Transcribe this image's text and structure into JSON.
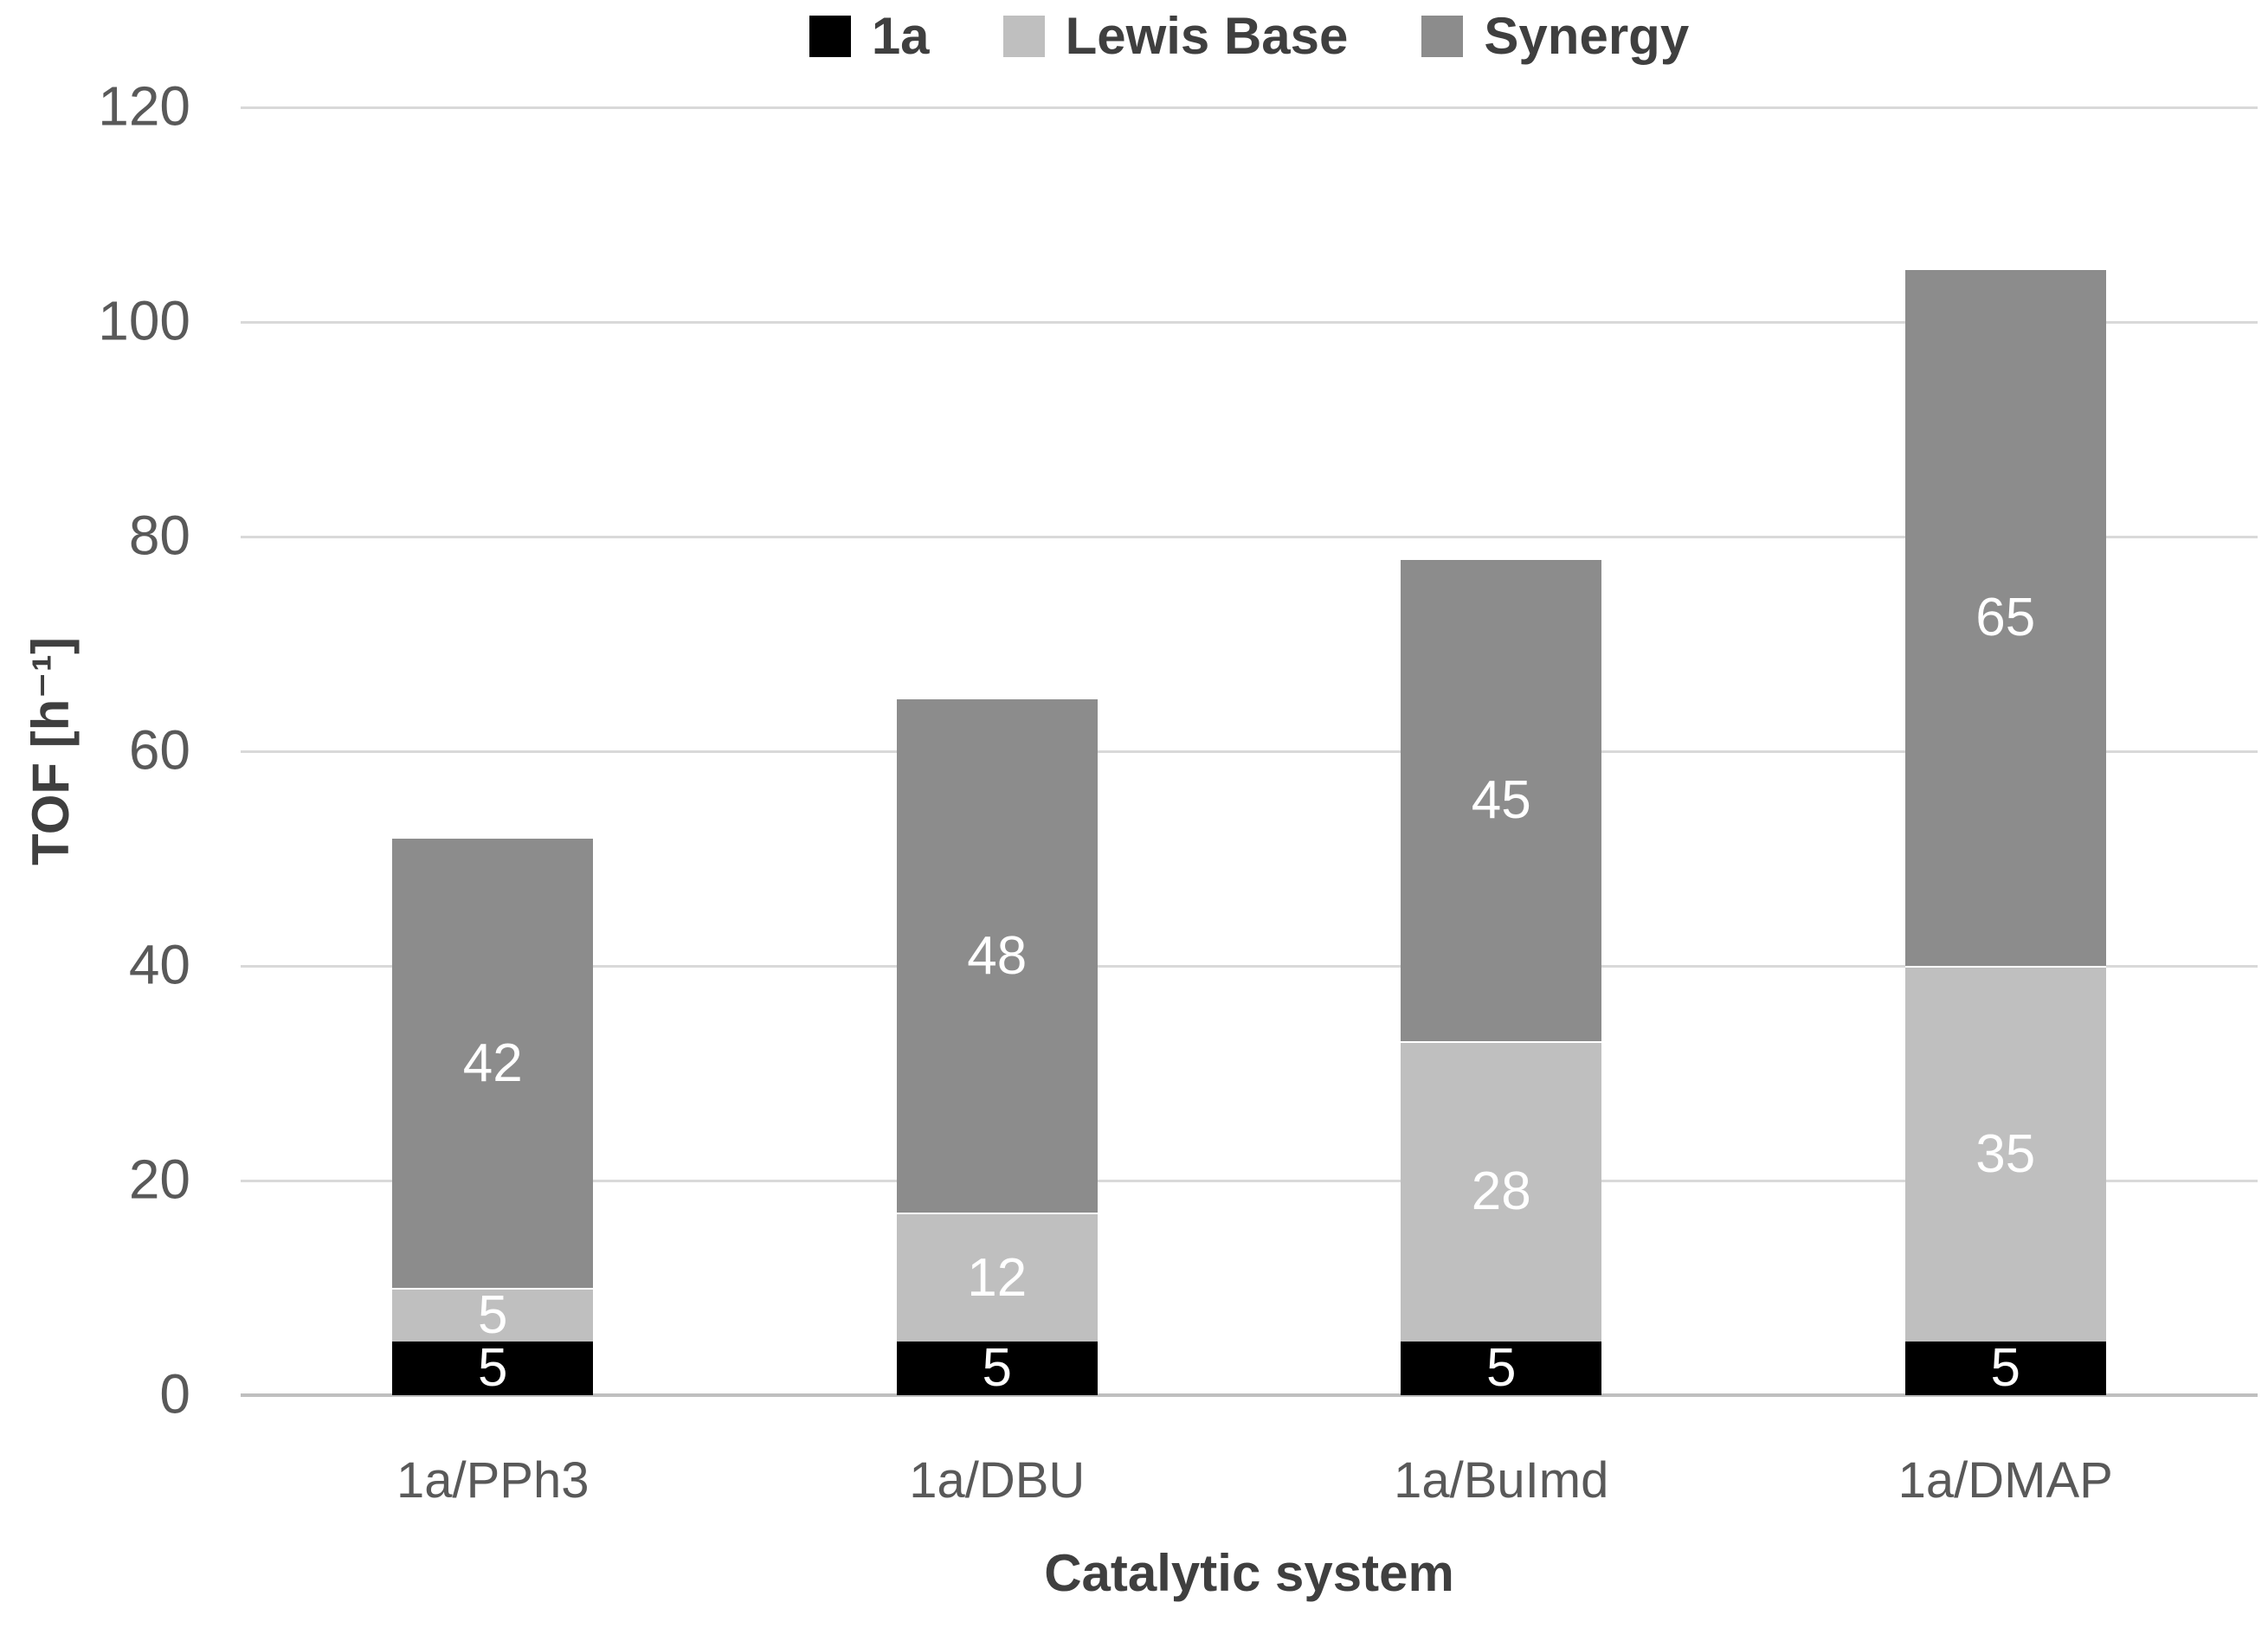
{
  "chart_data": {
    "type": "bar",
    "stacked": true,
    "categories": [
      "1a/PPh3",
      "1a/DBU",
      "1a/BuImd",
      "1a/DMAP"
    ],
    "series": [
      {
        "name": "1a",
        "color": "#000000",
        "values": [
          5,
          5,
          5,
          5
        ]
      },
      {
        "name": "Lewis Base",
        "color": "#bfbfbf",
        "values": [
          5,
          12,
          28,
          35
        ]
      },
      {
        "name": "Synergy",
        "color": "#8c8c8c",
        "values": [
          42,
          48,
          45,
          65
        ]
      }
    ],
    "totals": [
      52,
      65,
      78,
      105
    ],
    "title": "",
    "xlabel": "Catalytic system",
    "ylabel": "TOF [h⁻¹]",
    "ylim": [
      0,
      120
    ],
    "yticks": [
      0,
      20,
      40,
      60,
      80,
      100,
      120
    ],
    "grid": true,
    "legend_position": "top-center",
    "data_labels": "white, centered in each segment"
  },
  "colors": {
    "background": "#ffffff",
    "gridline": "#d9d9d9",
    "axis_line": "#bfbfbf",
    "tick_text": "#595959",
    "title_text": "#3f3f3f",
    "data_label_text": "#ffffff"
  }
}
